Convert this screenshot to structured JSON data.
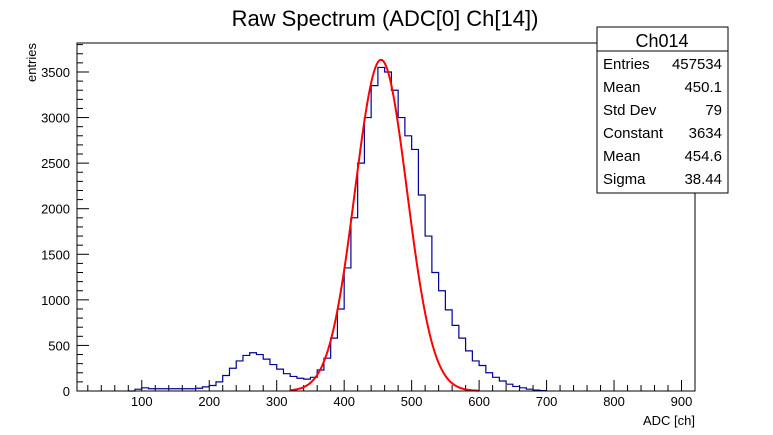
{
  "chart_data": {
    "type": "bar",
    "title": "Raw Spectrum (ADC[0] Ch[14])",
    "xlabel": "ADC [ch]",
    "ylabel": "entries",
    "xlim": [
      4,
      920
    ],
    "ylim": [
      0,
      3818
    ],
    "xticks": [
      100,
      200,
      300,
      400,
      500,
      600,
      700,
      800,
      900
    ],
    "yticks": [
      0,
      500,
      1000,
      1500,
      2000,
      2500,
      3000,
      3500
    ],
    "grid": false,
    "histogram": {
      "name": "Ch014",
      "color": "#000099",
      "bin_width": 10,
      "bin_starts": [
        80,
        90,
        100,
        110,
        120,
        130,
        140,
        150,
        160,
        170,
        180,
        190,
        200,
        210,
        220,
        230,
        240,
        250,
        260,
        270,
        280,
        290,
        300,
        310,
        320,
        330,
        340,
        350,
        360,
        370,
        380,
        390,
        400,
        410,
        420,
        430,
        440,
        450,
        460,
        470,
        480,
        490,
        500,
        510,
        520,
        530,
        540,
        550,
        560,
        570,
        580,
        590,
        600,
        610,
        620,
        630,
        640,
        650,
        660,
        670,
        680,
        690
      ],
      "values": [
        0,
        20,
        35,
        25,
        25,
        25,
        25,
        25,
        25,
        25,
        30,
        45,
        60,
        100,
        170,
        250,
        330,
        390,
        420,
        400,
        350,
        290,
        240,
        190,
        160,
        140,
        130,
        150,
        230,
        360,
        580,
        900,
        1350,
        1900,
        2500,
        3000,
        3350,
        3550,
        3500,
        3300,
        3000,
        2800,
        2650,
        2150,
        1700,
        1300,
        1100,
        890,
        720,
        580,
        440,
        330,
        280,
        200,
        150,
        110,
        75,
        50,
        35,
        20,
        10,
        5
      ]
    },
    "fit": {
      "function": "gaus",
      "color": "#ff0000",
      "constant": 3634,
      "mean": 454.6,
      "sigma": 38.44,
      "range": [
        320,
        600
      ]
    },
    "stats_box": {
      "title": "Ch014",
      "rows": [
        {
          "label": "Entries",
          "value": "457534"
        },
        {
          "label": "Mean",
          "value": "450.1"
        },
        {
          "label": "Std Dev",
          "value": "79"
        },
        {
          "label": "Constant",
          "value": "3634"
        },
        {
          "label": "Mean",
          "value": "454.6"
        },
        {
          "label": "Sigma",
          "value": "38.44"
        }
      ],
      "placement": "top-right"
    }
  }
}
